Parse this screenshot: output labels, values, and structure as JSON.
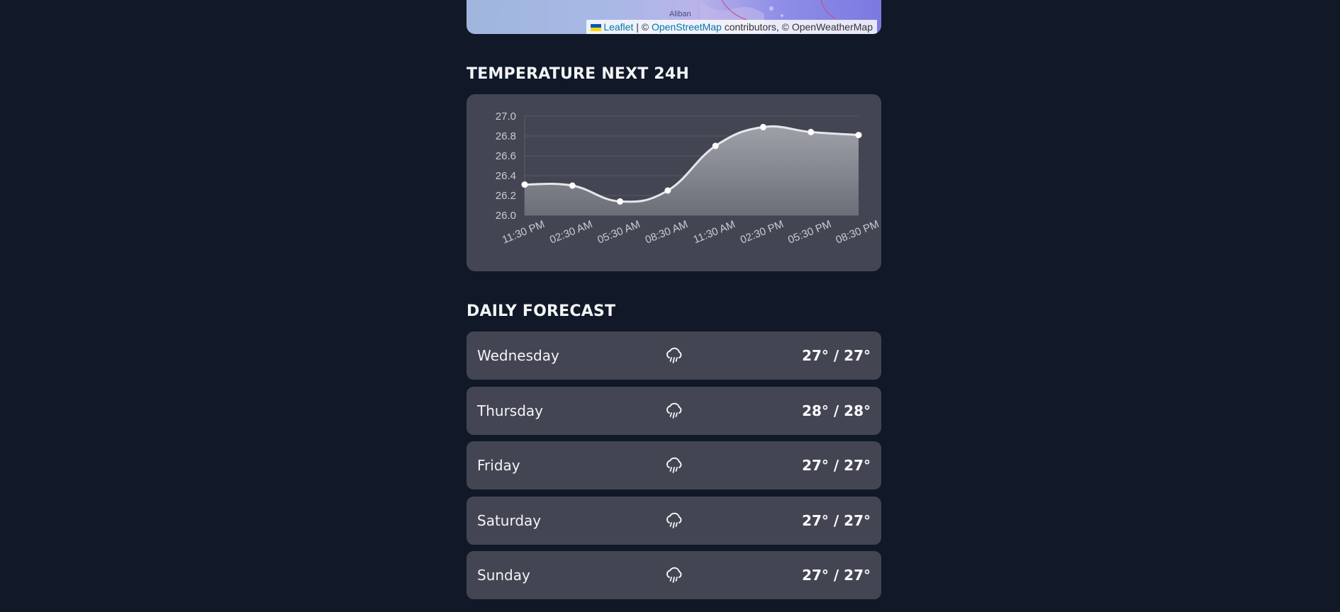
{
  "map": {
    "place_label": "Aliban",
    "attribution": {
      "leaflet": "Leaflet",
      "separator": " | © ",
      "osm": "OpenStreetMap",
      "rest": " contributors, © OpenWeatherMap"
    }
  },
  "temperature_section": {
    "title": "TEMPERATURE NEXT 24H"
  },
  "chart_data": {
    "type": "area",
    "categories": [
      "11:30 PM",
      "02:30 AM",
      "05:30 AM",
      "08:30 AM",
      "11:30 AM",
      "02:30 PM",
      "05:30 PM",
      "08:30 PM"
    ],
    "values": [
      26.31,
      26.3,
      26.14,
      26.25,
      26.7,
      26.89,
      26.84,
      26.81
    ],
    "y_ticks": [
      "26.0",
      "26.2",
      "26.4",
      "26.6",
      "26.8",
      "27.0"
    ],
    "ylim": [
      26.0,
      27.0
    ],
    "grid": true,
    "line_color": "#e5e7eb",
    "fill_color": "#9ca3af"
  },
  "daily_section": {
    "title": "DAILY FORECAST",
    "days": [
      {
        "name": "Wednesday",
        "icon": "rain-cloud-icon",
        "temp": "27° / 27°"
      },
      {
        "name": "Thursday",
        "icon": "rain-cloud-icon",
        "temp": "28° / 28°"
      },
      {
        "name": "Friday",
        "icon": "rain-cloud-icon",
        "temp": "27° / 27°"
      },
      {
        "name": "Saturday",
        "icon": "rain-cloud-icon",
        "temp": "27° / 27°"
      },
      {
        "name": "Sunday",
        "icon": "rain-cloud-icon",
        "temp": "27° / 27°"
      }
    ]
  },
  "colors": {
    "background": "#111827",
    "card": "#434652",
    "text": "#f3f4f6"
  }
}
